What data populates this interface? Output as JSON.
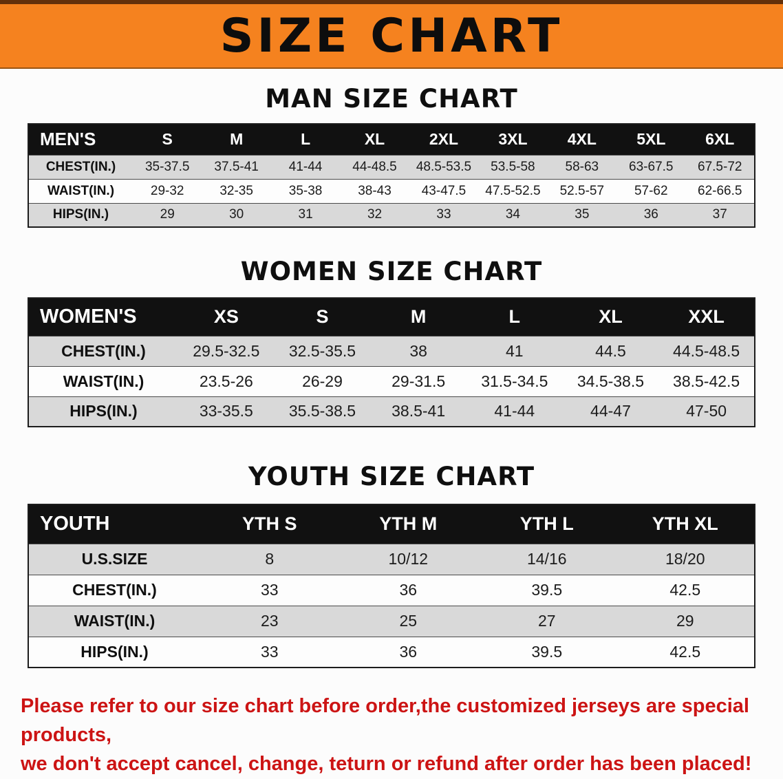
{
  "banner": {
    "title": "SIZE CHART"
  },
  "colors": {
    "banner-orange": "#f5821f",
    "header-black": "#111111",
    "note-red": "#cc1414",
    "row-gray": "#d9d9d9",
    "row-white": "#fdfdfd"
  },
  "chart_data": [
    {
      "type": "table",
      "title": "MAN SIZE CHART",
      "corner": "MEN'S",
      "columns": [
        "S",
        "M",
        "L",
        "XL",
        "2XL",
        "3XL",
        "4XL",
        "5XL",
        "6XL"
      ],
      "rows": [
        {
          "label": "CHEST(IN.)",
          "values": [
            "35-37.5",
            "37.5-41",
            "41-44",
            "44-48.5",
            "48.5-53.5",
            "53.5-58",
            "58-63",
            "63-67.5",
            "67.5-72"
          ]
        },
        {
          "label": "WAIST(IN.)",
          "values": [
            "29-32",
            "32-35",
            "35-38",
            "38-43",
            "43-47.5",
            "47.5-52.5",
            "52.5-57",
            "57-62",
            "62-66.5"
          ]
        },
        {
          "label": "HIPS(IN.)",
          "values": [
            "29",
            "30",
            "31",
            "32",
            "33",
            "34",
            "35",
            "36",
            "37"
          ]
        }
      ]
    },
    {
      "type": "table",
      "title": "WOMEN SIZE CHART",
      "corner": "WOMEN'S",
      "columns": [
        "XS",
        "S",
        "M",
        "L",
        "XL",
        "XXL"
      ],
      "rows": [
        {
          "label": "CHEST(IN.)",
          "values": [
            "29.5-32.5",
            "32.5-35.5",
            "38",
            "41",
            "44.5",
            "44.5-48.5"
          ]
        },
        {
          "label": "WAIST(IN.)",
          "values": [
            "23.5-26",
            "26-29",
            "29-31.5",
            "31.5-34.5",
            "34.5-38.5",
            "38.5-42.5"
          ]
        },
        {
          "label": "HIPS(IN.)",
          "values": [
            "33-35.5",
            "35.5-38.5",
            "38.5-41",
            "41-44",
            "44-47",
            "47-50"
          ]
        }
      ]
    },
    {
      "type": "table",
      "title": "YOUTH SIZE CHART",
      "corner": "YOUTH",
      "columns": [
        "YTH S",
        "YTH M",
        "YTH L",
        "YTH XL"
      ],
      "rows": [
        {
          "label": "U.S.SIZE",
          "values": [
            "8",
            "10/12",
            "14/16",
            "18/20"
          ]
        },
        {
          "label": "CHEST(IN.)",
          "values": [
            "33",
            "36",
            "39.5",
            "42.5"
          ]
        },
        {
          "label": "WAIST(IN.)",
          "values": [
            "23",
            "25",
            "27",
            "29"
          ]
        },
        {
          "label": "HIPS(IN.)",
          "values": [
            "33",
            "36",
            "39.5",
            "42.5"
          ]
        }
      ]
    }
  ],
  "footer": {
    "lines": [
      "Please refer to our size chart before order,the customized jerseys are special products,",
      "we don't accept cancel, change, teturn or refund after order has been placed!"
    ]
  }
}
